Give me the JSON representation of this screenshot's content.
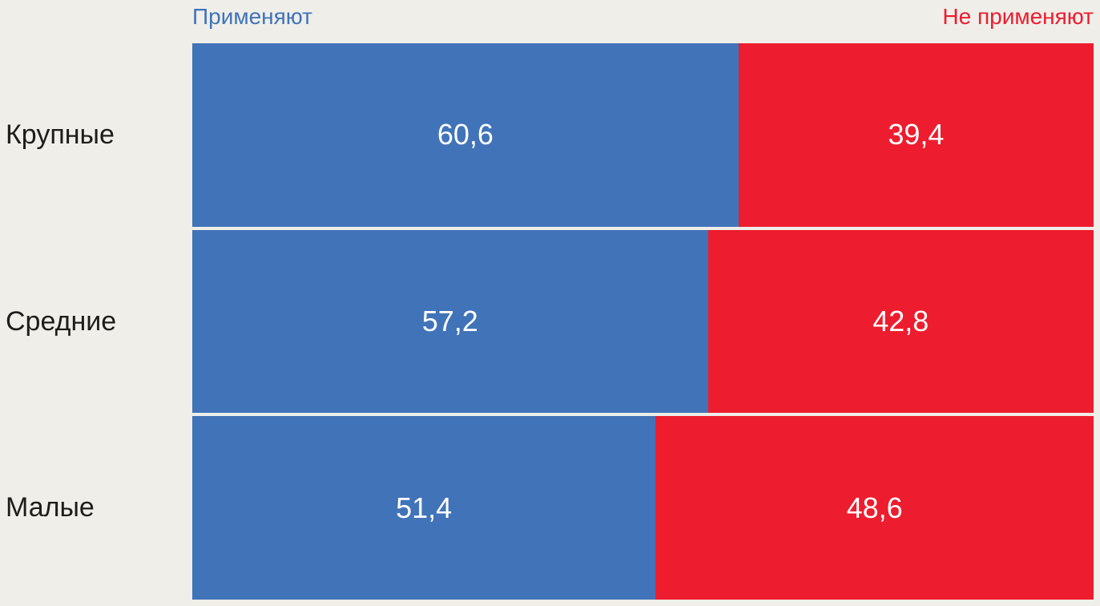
{
  "chart_data": {
    "type": "bar",
    "orientation": "horizontal",
    "stacked": true,
    "categories": [
      "Крупные",
      "Средние",
      "Малые"
    ],
    "series": [
      {
        "name": "Применяют",
        "color": "#4173B8",
        "values": [
          60.6,
          57.2,
          51.4
        ]
      },
      {
        "name": "Не применяют",
        "color": "#ED1C2E",
        "values": [
          39.4,
          42.8,
          48.6
        ]
      }
    ],
    "value_labels": [
      [
        "60,6",
        "39,4"
      ],
      [
        "57,2",
        "42,8"
      ],
      [
        "51,4",
        "48,6"
      ]
    ],
    "xlim": [
      0,
      100
    ],
    "legend_position": "top",
    "grid": false,
    "title": "",
    "xlabel": "",
    "ylabel": ""
  },
  "legend": {
    "apply_label": "Применяют",
    "not_apply_label": "Не применяют"
  },
  "colors": {
    "background": "#EFEEE9",
    "apply": "#4173B8",
    "not_apply": "#ED1C2E",
    "category_text": "#1D1D1B",
    "value_text": "#FFFFFF"
  }
}
